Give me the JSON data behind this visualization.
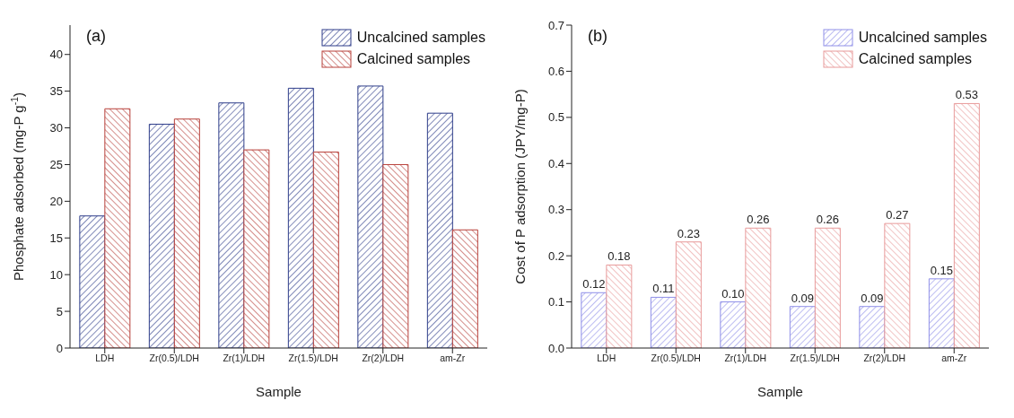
{
  "chart_data": [
    {
      "type": "bar",
      "xlabel": "Sample",
      "ylabel": "Phosphate adsorbed (mg-P g$^{-1}$)",
      "annotations": [
        "(a)"
      ],
      "categories": [
        "LDH",
        "Zr(0.5)/LDH",
        "Zr(1)/LDH",
        "Zr(1.5)/LDH",
        "Zr(2)/LDH",
        "am-Zr"
      ],
      "series": [
        {
          "name": "Uncalcined samples",
          "color": "#2e3d8a",
          "values": [
            18,
            30.5,
            33.4,
            35.4,
            35.7,
            32
          ]
        },
        {
          "name": "Calcined samples",
          "color": "#b8403a",
          "values": [
            32.6,
            31.2,
            27,
            26.7,
            25,
            16.1
          ]
        }
      ],
      "ylim": [
        0,
        44
      ],
      "yticks": [
        0,
        5,
        10,
        15,
        20,
        25,
        30,
        35,
        40
      ],
      "legend": "top right"
    },
    {
      "type": "bar",
      "xlabel": "Sample",
      "ylabel": "Cost of P adsorption (JPY/mg-P)",
      "annotations": [
        "(b)"
      ],
      "categories": [
        "LDH",
        "Zr(0.5)/LDH",
        "Zr(1)/LDH",
        "Zr(1.5)/LDH",
        "Zr(2)/LDH",
        "am-Zr"
      ],
      "series": [
        {
          "name": "Uncalcined samples",
          "color": "#8f8fe8",
          "values": [
            0.12,
            0.11,
            0.1,
            0.09,
            0.09,
            0.15
          ],
          "value_labels": [
            "0.12",
            "0.11",
            "0.10",
            "0.09",
            "0.09",
            "0.15"
          ]
        },
        {
          "name": "Calcined samples",
          "color": "#e89a9a",
          "values": [
            0.18,
            0.23,
            0.26,
            0.26,
            0.27,
            0.53
          ],
          "value_labels": [
            "0.18",
            "0.23",
            "0.26",
            "0.26",
            "0.27",
            "0.53"
          ]
        }
      ],
      "ylim": [
        0,
        0.7
      ],
      "yticks": [
        {
          "value": 0,
          "label": "0.0"
        },
        0.1,
        0.2,
        0.3,
        0.4,
        0.5,
        0.6,
        0.7
      ],
      "legend": "top right"
    }
  ]
}
